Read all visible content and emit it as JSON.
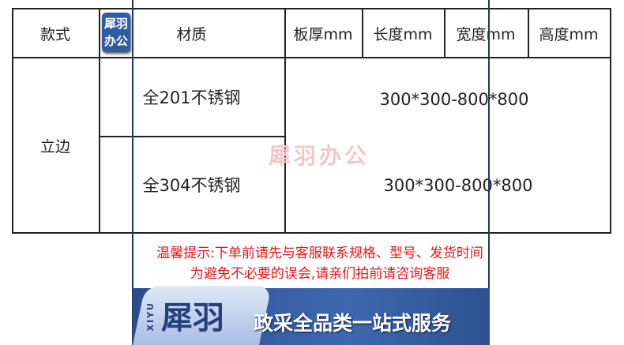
{
  "table": {
    "headers": [
      "款式",
      "材质",
      "板厚mm",
      "长度mm",
      "宽度mm",
      "高度mm"
    ],
    "style": "立边",
    "rows": [
      {
        "material": "全201不锈钢",
        "size": "300*300-800*800"
      },
      {
        "material": "全304不锈钢",
        "size": "300*300-800*800"
      }
    ]
  },
  "watermark": "犀羽办公",
  "badge": {
    "line1": "犀羽",
    "line2": "办公"
  },
  "notice": {
    "line1": "温馨提示:下单前请先与客服联系规格、型号、发货时间",
    "line2": "为避免不必要的误会,请亲们拍前请咨询客服"
  },
  "banner": {
    "brand_latin": "XIYU",
    "brand": "犀羽",
    "slogan": "政采全品类一站式服务"
  },
  "colors": {
    "notice": "#e8161b",
    "banner": "#2f5aa5",
    "frame": "#1f3a63"
  }
}
